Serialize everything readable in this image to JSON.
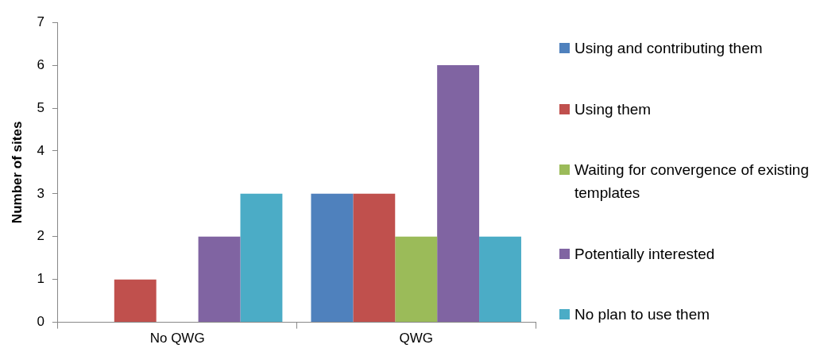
{
  "chart_data": {
    "type": "bar",
    "ylabel": "Number of sites",
    "categories": [
      "No QWG",
      "QWG"
    ],
    "series": [
      {
        "name": "Using and contributing them",
        "color": "#4f81bd",
        "values": [
          0,
          3
        ]
      },
      {
        "name": "Using them",
        "color": "#c0504d",
        "values": [
          1,
          3
        ]
      },
      {
        "name": "Waiting for convergence of existing templates",
        "color": "#9bbb59",
        "values": [
          0,
          2
        ]
      },
      {
        "name": "Potentially interested",
        "color": "#8064a2",
        "values": [
          2,
          6
        ]
      },
      {
        "name": "No plan to use them",
        "color": "#4bacc6",
        "values": [
          3,
          2
        ]
      }
    ],
    "ylim": [
      0,
      7
    ],
    "yticks": [
      0,
      1,
      2,
      3,
      4,
      5,
      6,
      7
    ],
    "grid": false,
    "legend": "right"
  }
}
